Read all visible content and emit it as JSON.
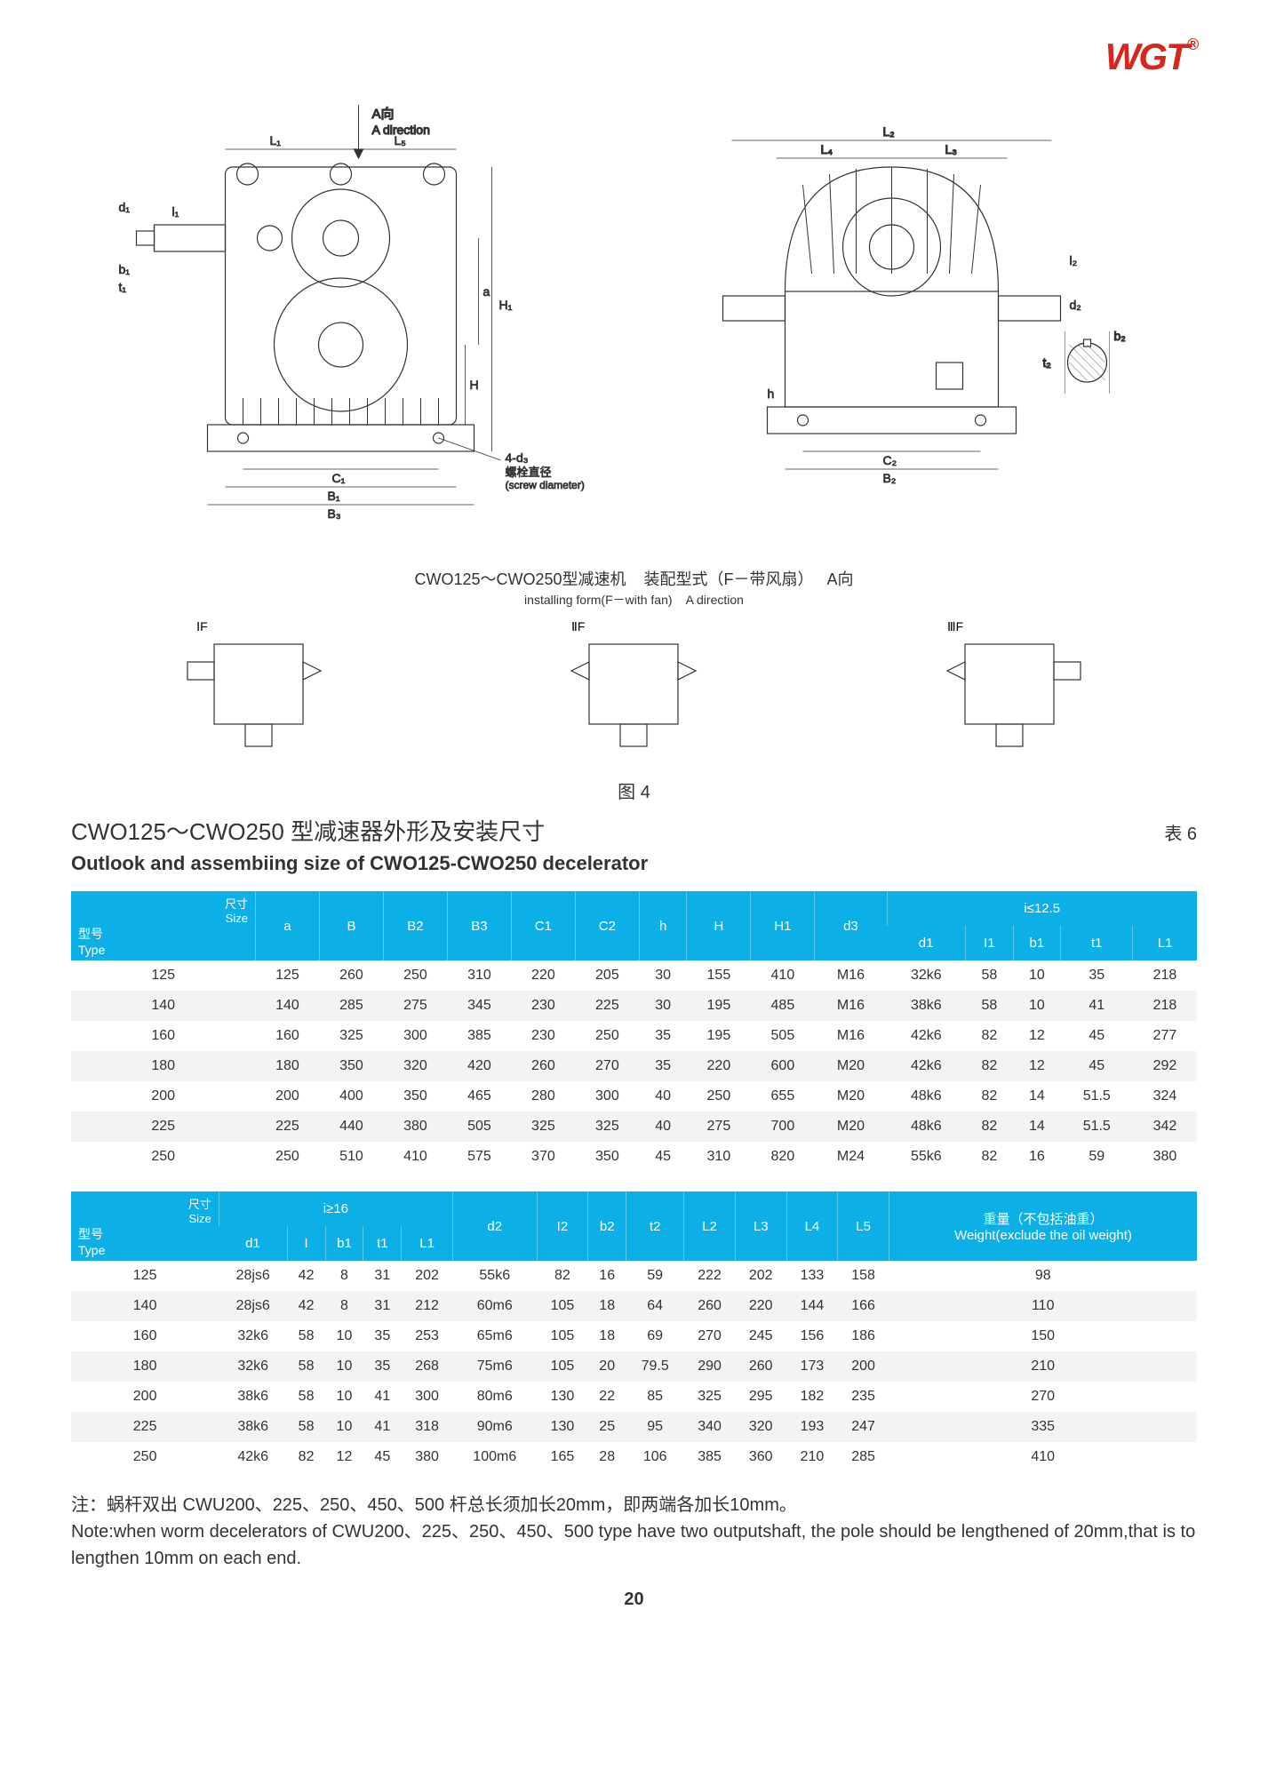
{
  "logo": "WGT",
  "logo_mark": "®",
  "diagram_labels": {
    "a_dir_cn": "A向",
    "a_dir_en": "A direction",
    "screw_cn": "螺栓直径",
    "screw_en": "(screw diameter)",
    "bolt_label": "4-d₃",
    "L1": "L₁",
    "L2": "L₂",
    "L3": "L₃",
    "L4": "L₄",
    "L5": "L₅",
    "B1": "B₁",
    "B2": "B₂",
    "B3": "B₃",
    "C1": "C₁",
    "C2": "C₂",
    "H": "H",
    "H1": "H₁",
    "a": "a",
    "h": "h",
    "d1": "d₁",
    "d2": "d₂",
    "b1": "b₁",
    "b2": "b₂",
    "t1": "t₁",
    "t2": "t₂",
    "l1": "l₁",
    "l2": "l₂"
  },
  "mid_caption_main": "CWO125～CWO250型减速机",
  "mid_caption_form_cn": "装配型式（F－带风扇）",
  "mid_caption_form_en": "installing form(F－with fan)",
  "mid_caption_adir_cn": "A向",
  "mid_caption_adir_en": "A direction",
  "form_labels": {
    "f1": "ⅠF",
    "f2": "ⅡF",
    "f3": "ⅢF"
  },
  "fig_label": "图 4",
  "title_cn": "CWO125～CWO250 型减速器外形及安装尺寸",
  "table_label": "表 6",
  "title_en": "Outlook and assembiing size of CWO125-CWO250  decelerator",
  "table1": {
    "header_size_cn": "尺寸",
    "header_size_en": "Size",
    "header_type_cn": "型号",
    "header_type_en": "Type",
    "group_i_le": "i≤12.5",
    "columns": [
      "a",
      "B",
      "B2",
      "B3",
      "C1",
      "C2",
      "h",
      "H",
      "H1",
      "d3",
      "d1",
      "I1",
      "b1",
      "t1",
      "L1"
    ],
    "rows": [
      [
        "125",
        "125",
        "260",
        "250",
        "310",
        "220",
        "205",
        "30",
        "155",
        "410",
        "M16",
        "32k6",
        "58",
        "10",
        "35",
        "218"
      ],
      [
        "140",
        "140",
        "285",
        "275",
        "345",
        "230",
        "225",
        "30",
        "195",
        "485",
        "M16",
        "38k6",
        "58",
        "10",
        "41",
        "218"
      ],
      [
        "160",
        "160",
        "325",
        "300",
        "385",
        "230",
        "250",
        "35",
        "195",
        "505",
        "M16",
        "42k6",
        "82",
        "12",
        "45",
        "277"
      ],
      [
        "180",
        "180",
        "350",
        "320",
        "420",
        "260",
        "270",
        "35",
        "220",
        "600",
        "M20",
        "42k6",
        "82",
        "12",
        "45",
        "292"
      ],
      [
        "200",
        "200",
        "400",
        "350",
        "465",
        "280",
        "300",
        "40",
        "250",
        "655",
        "M20",
        "48k6",
        "82",
        "14",
        "51.5",
        "324"
      ],
      [
        "225",
        "225",
        "440",
        "380",
        "505",
        "325",
        "325",
        "40",
        "275",
        "700",
        "M20",
        "48k6",
        "82",
        "14",
        "51.5",
        "342"
      ],
      [
        "250",
        "250",
        "510",
        "410",
        "575",
        "370",
        "350",
        "45",
        "310",
        "820",
        "M24",
        "55k6",
        "82",
        "16",
        "59",
        "380"
      ]
    ]
  },
  "table2": {
    "header_size_cn": "尺寸",
    "header_size_en": "Size",
    "header_type_cn": "型号",
    "header_type_en": "Type",
    "group_i_ge": "i≥16",
    "weight_cn": "重量（不包括油重）",
    "weight_en": "Weight(exclude the oil weight)",
    "columns_g1": [
      "d1",
      "I",
      "b1",
      "t1",
      "L1"
    ],
    "columns_g2": [
      "d2",
      "I2",
      "b2",
      "t2",
      "L2",
      "L3",
      "L4",
      "L5"
    ],
    "rows": [
      [
        "125",
        "28js6",
        "42",
        "8",
        "31",
        "202",
        "55k6",
        "82",
        "16",
        "59",
        "222",
        "202",
        "133",
        "158",
        "98"
      ],
      [
        "140",
        "28js6",
        "42",
        "8",
        "31",
        "212",
        "60m6",
        "105",
        "18",
        "64",
        "260",
        "220",
        "144",
        "166",
        "110"
      ],
      [
        "160",
        "32k6",
        "58",
        "10",
        "35",
        "253",
        "65m6",
        "105",
        "18",
        "69",
        "270",
        "245",
        "156",
        "186",
        "150"
      ],
      [
        "180",
        "32k6",
        "58",
        "10",
        "35",
        "268",
        "75m6",
        "105",
        "20",
        "79.5",
        "290",
        "260",
        "173",
        "200",
        "210"
      ],
      [
        "200",
        "38k6",
        "58",
        "10",
        "41",
        "300",
        "80m6",
        "130",
        "22",
        "85",
        "325",
        "295",
        "182",
        "235",
        "270"
      ],
      [
        "225",
        "38k6",
        "58",
        "10",
        "41",
        "318",
        "90m6",
        "130",
        "25",
        "95",
        "340",
        "320",
        "193",
        "247",
        "335"
      ],
      [
        "250",
        "42k6",
        "82",
        "12",
        "45",
        "380",
        "100m6",
        "165",
        "28",
        "106",
        "385",
        "360",
        "210",
        "285",
        "410"
      ]
    ]
  },
  "note_cn": "注：蜗杆双出 CWU200、225、250、450、500 杆总长须加长20mm，即两端各加长10mm。",
  "note_en": "Note:when worm decelerators of  CWU200、225、250、450、500 type have two outputshaft, the pole should be lengthened of 20mm,that is to lengthen 10mm on each end.",
  "page_num": "20",
  "colors": {
    "header_bg": "#0db0e6",
    "row_alt": "#f3f3f3",
    "logo": "#d8261c"
  }
}
